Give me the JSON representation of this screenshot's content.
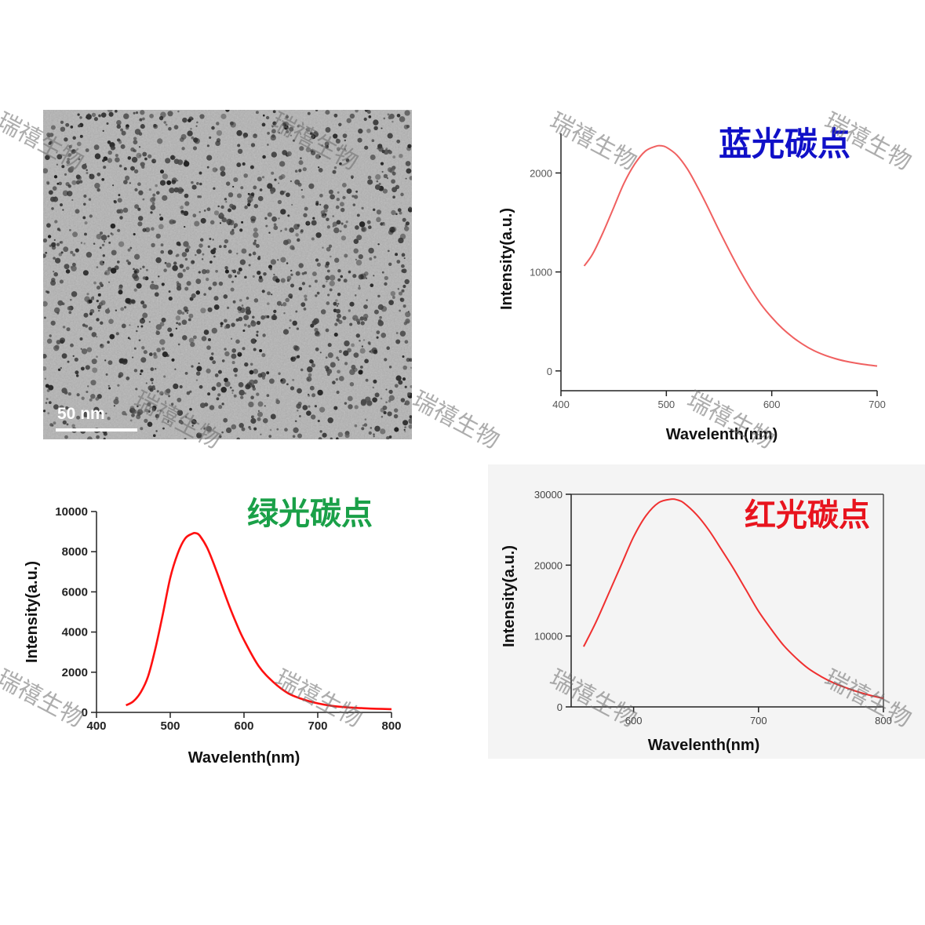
{
  "tem_image": {
    "scale_label": "50 nm"
  },
  "watermark": "瑞禧生物",
  "chart_data": [
    {
      "type": "line",
      "title": "蓝光碳点",
      "title_color": "#1010c8",
      "xlabel": "Wavelenth(nm)",
      "ylabel": "Intensity(a.u.)",
      "xlim": [
        400,
        700
      ],
      "ylim": [
        -200,
        2400
      ],
      "xticks": [
        400,
        500,
        600,
        700
      ],
      "yticks": [
        0,
        1000,
        2000
      ],
      "line_color": "#f06060",
      "series": [
        {
          "x": [
            422,
            430,
            440,
            450,
            460,
            470,
            480,
            490,
            495,
            500,
            510,
            520,
            530,
            540,
            550,
            560,
            570,
            580,
            590,
            600,
            610,
            620,
            630,
            640,
            650,
            660,
            670,
            680,
            690,
            700
          ],
          "values": [
            1060,
            1180,
            1400,
            1650,
            1900,
            2090,
            2220,
            2270,
            2275,
            2260,
            2180,
            2040,
            1850,
            1640,
            1420,
            1210,
            1010,
            830,
            670,
            540,
            430,
            340,
            265,
            205,
            160,
            125,
            98,
            78,
            62,
            50
          ]
        }
      ]
    },
    {
      "type": "line",
      "title": "绿光碳点",
      "title_color": "#1aa048",
      "xlabel": "Wavelenth(nm)",
      "ylabel": "Intensity(a.u.)",
      "xlim": [
        400,
        800
      ],
      "ylim": [
        0,
        10000
      ],
      "xticks": [
        400,
        500,
        600,
        700,
        800
      ],
      "yticks": [
        0,
        2000,
        4000,
        6000,
        8000,
        10000
      ],
      "line_color": "#ff1010",
      "series": [
        {
          "x": [
            440,
            450,
            460,
            470,
            480,
            490,
            500,
            510,
            520,
            530,
            535,
            540,
            550,
            560,
            570,
            580,
            590,
            600,
            620,
            640,
            660,
            680,
            700,
            720,
            740,
            760,
            780,
            800
          ],
          "values": [
            350,
            550,
            1000,
            1800,
            3200,
            4900,
            6700,
            7900,
            8650,
            8900,
            8920,
            8800,
            8200,
            7300,
            6300,
            5300,
            4400,
            3600,
            2300,
            1500,
            950,
            650,
            450,
            320,
            250,
            210,
            180,
            160
          ]
        }
      ]
    },
    {
      "type": "line",
      "title": "红光碳点",
      "title_color": "#e8141e",
      "xlabel": "Wavelenth(nm)",
      "ylabel": "Intensity(a.u.)",
      "xlim": [
        550,
        800
      ],
      "ylim": [
        0,
        30000
      ],
      "xticks": [
        600,
        700,
        800
      ],
      "yticks": [
        0,
        10000,
        20000,
        30000
      ],
      "line_color": "#f03030",
      "series": [
        {
          "x": [
            560,
            570,
            580,
            590,
            600,
            610,
            620,
            630,
            635,
            640,
            650,
            660,
            670,
            680,
            690,
            700,
            710,
            720,
            730,
            740,
            750,
            760,
            770,
            780,
            790,
            800
          ],
          "values": [
            8500,
            12000,
            16000,
            20000,
            24000,
            27000,
            28800,
            29300,
            29200,
            28800,
            27200,
            25000,
            22300,
            19500,
            16500,
            13500,
            11000,
            8700,
            6900,
            5400,
            4300,
            3400,
            2700,
            2100,
            1600,
            1200
          ]
        }
      ]
    }
  ]
}
